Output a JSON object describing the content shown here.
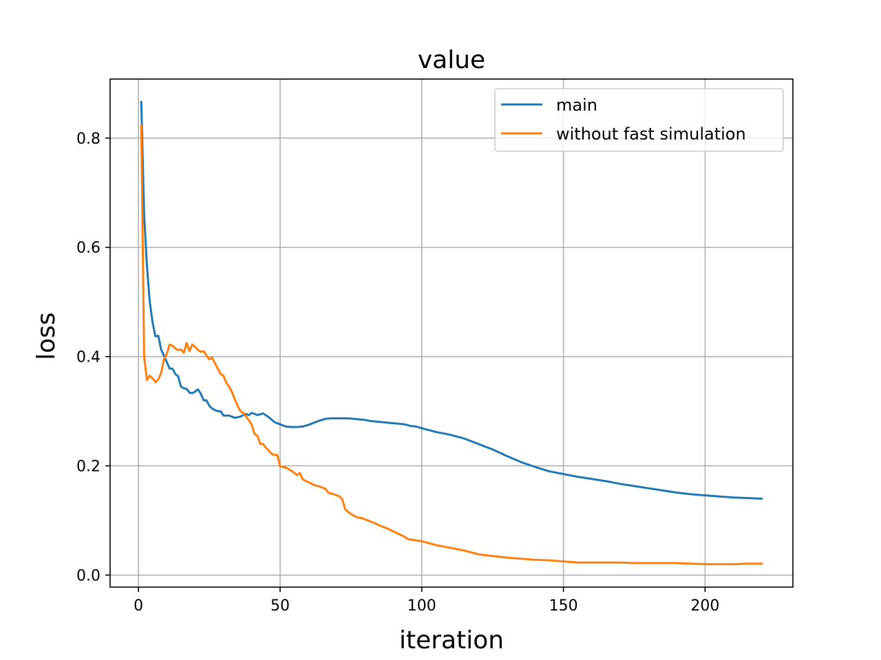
{
  "chart_data": {
    "type": "line",
    "title": "value",
    "xlabel": "iteration",
    "ylabel": "loss",
    "xlim": [
      -10,
      231
    ],
    "ylim": [
      -0.022,
      0.908
    ],
    "xticks": [
      0,
      50,
      100,
      150,
      200
    ],
    "xtick_labels": [
      "0",
      "50",
      "100",
      "150",
      "200"
    ],
    "yticks": [
      0.0,
      0.2,
      0.4,
      0.6,
      0.8
    ],
    "ytick_labels": [
      "0.0",
      "0.2",
      "0.4",
      "0.6",
      "0.8"
    ],
    "grid": true,
    "legend_position": "top-right",
    "series": [
      {
        "name": "main",
        "color": "#1f77b4",
        "points": [
          [
            1,
            0.866
          ],
          [
            2,
            0.66
          ],
          [
            3,
            0.565
          ],
          [
            4,
            0.5
          ],
          [
            5,
            0.462
          ],
          [
            6,
            0.437
          ],
          [
            7,
            0.438
          ],
          [
            8,
            0.413
          ],
          [
            9,
            0.402
          ],
          [
            10,
            0.39
          ],
          [
            11,
            0.378
          ],
          [
            12,
            0.378
          ],
          [
            13,
            0.368
          ],
          [
            14,
            0.364
          ],
          [
            15,
            0.345
          ],
          [
            16,
            0.342
          ],
          [
            17,
            0.341
          ],
          [
            18,
            0.334
          ],
          [
            19,
            0.333
          ],
          [
            20,
            0.336
          ],
          [
            21,
            0.34
          ],
          [
            22,
            0.332
          ],
          [
            23,
            0.32
          ],
          [
            24,
            0.32
          ],
          [
            25,
            0.31
          ],
          [
            26,
            0.305
          ],
          [
            27,
            0.302
          ],
          [
            28,
            0.3
          ],
          [
            29,
            0.3
          ],
          [
            30,
            0.292
          ],
          [
            32,
            0.292
          ],
          [
            34,
            0.288
          ],
          [
            36,
            0.29
          ],
          [
            37,
            0.293
          ],
          [
            38,
            0.295
          ],
          [
            39,
            0.293
          ],
          [
            40,
            0.297
          ],
          [
            42,
            0.293
          ],
          [
            44,
            0.296
          ],
          [
            46,
            0.289
          ],
          [
            48,
            0.28
          ],
          [
            50,
            0.276
          ],
          [
            52,
            0.272
          ],
          [
            54,
            0.271
          ],
          [
            56,
            0.271
          ],
          [
            58,
            0.272
          ],
          [
            60,
            0.275
          ],
          [
            62,
            0.279
          ],
          [
            64,
            0.283
          ],
          [
            66,
            0.286
          ],
          [
            68,
            0.287
          ],
          [
            70,
            0.287
          ],
          [
            72,
            0.287
          ],
          [
            74,
            0.287
          ],
          [
            76,
            0.286
          ],
          [
            78,
            0.285
          ],
          [
            80,
            0.284
          ],
          [
            82,
            0.282
          ],
          [
            84,
            0.281
          ],
          [
            86,
            0.28
          ],
          [
            88,
            0.279
          ],
          [
            90,
            0.278
          ],
          [
            92,
            0.277
          ],
          [
            94,
            0.276
          ],
          [
            96,
            0.273
          ],
          [
            98,
            0.272
          ],
          [
            100,
            0.269
          ],
          [
            105,
            0.262
          ],
          [
            110,
            0.257
          ],
          [
            115,
            0.25
          ],
          [
            120,
            0.24
          ],
          [
            125,
            0.23
          ],
          [
            130,
            0.218
          ],
          [
            135,
            0.207
          ],
          [
            140,
            0.198
          ],
          [
            145,
            0.19
          ],
          [
            150,
            0.185
          ],
          [
            155,
            0.18
          ],
          [
            160,
            0.176
          ],
          [
            165,
            0.172
          ],
          [
            170,
            0.167
          ],
          [
            175,
            0.163
          ],
          [
            180,
            0.159
          ],
          [
            185,
            0.155
          ],
          [
            190,
            0.151
          ],
          [
            195,
            0.148
          ],
          [
            200,
            0.146
          ],
          [
            205,
            0.144
          ],
          [
            210,
            0.142
          ],
          [
            215,
            0.141
          ],
          [
            220,
            0.14
          ]
        ]
      },
      {
        "name": "without fast simulation",
        "color": "#ff7f0e",
        "points": [
          [
            1,
            0.822
          ],
          [
            2,
            0.4
          ],
          [
            3,
            0.357
          ],
          [
            4,
            0.365
          ],
          [
            5,
            0.36
          ],
          [
            6,
            0.353
          ],
          [
            7,
            0.358
          ],
          [
            8,
            0.37
          ],
          [
            9,
            0.395
          ],
          [
            10,
            0.405
          ],
          [
            11,
            0.422
          ],
          [
            12,
            0.42
          ],
          [
            13,
            0.415
          ],
          [
            14,
            0.412
          ],
          [
            15,
            0.413
          ],
          [
            16,
            0.407
          ],
          [
            17,
            0.425
          ],
          [
            18,
            0.41
          ],
          [
            19,
            0.422
          ],
          [
            20,
            0.418
          ],
          [
            21,
            0.412
          ],
          [
            22,
            0.409
          ],
          [
            23,
            0.41
          ],
          [
            24,
            0.402
          ],
          [
            25,
            0.395
          ],
          [
            26,
            0.398
          ],
          [
            27,
            0.388
          ],
          [
            28,
            0.378
          ],
          [
            29,
            0.368
          ],
          [
            30,
            0.365
          ],
          [
            31,
            0.352
          ],
          [
            32,
            0.345
          ],
          [
            33,
            0.335
          ],
          [
            34,
            0.322
          ],
          [
            35,
            0.31
          ],
          [
            36,
            0.3
          ],
          [
            37,
            0.297
          ],
          [
            38,
            0.29
          ],
          [
            39,
            0.283
          ],
          [
            40,
            0.275
          ],
          [
            41,
            0.258
          ],
          [
            42,
            0.255
          ],
          [
            43,
            0.24
          ],
          [
            44,
            0.24
          ],
          [
            45,
            0.233
          ],
          [
            46,
            0.228
          ],
          [
            47,
            0.222
          ],
          [
            48,
            0.22
          ],
          [
            49,
            0.22
          ],
          [
            50,
            0.199
          ],
          [
            52,
            0.197
          ],
          [
            54,
            0.191
          ],
          [
            56,
            0.183
          ],
          [
            57,
            0.187
          ],
          [
            58,
            0.175
          ],
          [
            60,
            0.17
          ],
          [
            62,
            0.165
          ],
          [
            64,
            0.162
          ],
          [
            66,
            0.158
          ],
          [
            67,
            0.151
          ],
          [
            69,
            0.148
          ],
          [
            71,
            0.144
          ],
          [
            72,
            0.138
          ],
          [
            73,
            0.12
          ],
          [
            75,
            0.112
          ],
          [
            77,
            0.106
          ],
          [
            79,
            0.104
          ],
          [
            81,
            0.1
          ],
          [
            83,
            0.096
          ],
          [
            85,
            0.091
          ],
          [
            88,
            0.085
          ],
          [
            90,
            0.08
          ],
          [
            92,
            0.075
          ],
          [
            94,
            0.07
          ],
          [
            95,
            0.066
          ],
          [
            100,
            0.062
          ],
          [
            105,
            0.055
          ],
          [
            110,
            0.05
          ],
          [
            115,
            0.045
          ],
          [
            120,
            0.038
          ],
          [
            125,
            0.035
          ],
          [
            130,
            0.032
          ],
          [
            135,
            0.03
          ],
          [
            140,
            0.028
          ],
          [
            145,
            0.027
          ],
          [
            150,
            0.025
          ],
          [
            155,
            0.023
          ],
          [
            160,
            0.023
          ],
          [
            165,
            0.023
          ],
          [
            170,
            0.023
          ],
          [
            175,
            0.022
          ],
          [
            180,
            0.022
          ],
          [
            185,
            0.022
          ],
          [
            190,
            0.022
          ],
          [
            195,
            0.021
          ],
          [
            200,
            0.02
          ],
          [
            205,
            0.02
          ],
          [
            210,
            0.02
          ],
          [
            215,
            0.021
          ],
          [
            220,
            0.021
          ]
        ]
      }
    ]
  }
}
